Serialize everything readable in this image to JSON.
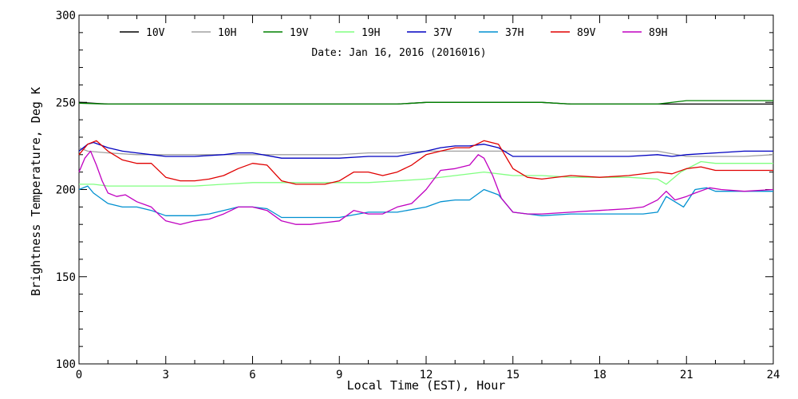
{
  "chart_data": {
    "type": "line",
    "title": "",
    "subtitle": "Date: Jan 16, 2016 (2016016)",
    "xlabel": "Local Time (EST), Hour",
    "ylabel": "Brightness Temperature, Deg K",
    "xlim": [
      0,
      24
    ],
    "ylim": [
      100,
      300
    ],
    "x_ticks": [
      0,
      3,
      6,
      9,
      12,
      15,
      18,
      21,
      24
    ],
    "y_ticks": [
      100,
      150,
      200,
      250,
      300
    ],
    "grid": false,
    "legend_position": "top",
    "series": [
      {
        "name": "10V",
        "color": "#000000",
        "x": [
          0,
          1,
          2,
          3,
          4,
          5,
          6,
          7,
          8,
          9,
          10,
          11,
          12,
          13,
          14,
          15,
          16,
          17,
          18,
          19,
          20,
          21,
          22,
          23,
          24
        ],
        "y": [
          250,
          249,
          249,
          249,
          249,
          249,
          249,
          249,
          249,
          249,
          249,
          249,
          250,
          250,
          250,
          250,
          250,
          249,
          249,
          249,
          249,
          249,
          249,
          249,
          249
        ]
      },
      {
        "name": "10H",
        "color": "#a0a0a0",
        "x": [
          0,
          0.3,
          1,
          2,
          3,
          4,
          5,
          6,
          7,
          8,
          9,
          10,
          11,
          12,
          13,
          14,
          15,
          16,
          17,
          18,
          19,
          20,
          21,
          22,
          23,
          24
        ],
        "y": [
          224,
          222,
          221,
          220,
          220,
          220,
          220,
          220,
          220,
          220,
          220,
          221,
          221,
          222,
          222,
          222,
          222,
          222,
          222,
          222,
          222,
          222,
          219,
          219,
          219,
          220
        ]
      },
      {
        "name": "19V",
        "color": "#008000",
        "x": [
          0,
          1,
          2,
          3,
          4,
          5,
          6,
          7,
          8,
          9,
          10,
          11,
          12,
          13,
          14,
          15,
          16,
          17,
          18,
          19,
          20,
          21,
          22,
          23,
          24
        ],
        "y": [
          249.5,
          249,
          249,
          249,
          249,
          249,
          249,
          249,
          249,
          249,
          249,
          249,
          250,
          250,
          250,
          250,
          250,
          249,
          249,
          249,
          249,
          251,
          251,
          251,
          251
        ]
      },
      {
        "name": "19H",
        "color": "#80ff80",
        "x": [
          0,
          0.5,
          1,
          2,
          3,
          4,
          5,
          6,
          7,
          8,
          9,
          10,
          11,
          12,
          13,
          14,
          15,
          16,
          17,
          18,
          19,
          20,
          20.3,
          20.8,
          21.5,
          22,
          23,
          24
        ],
        "y": [
          203,
          203,
          202,
          202,
          202,
          202,
          203,
          204,
          204,
          204,
          204,
          204,
          205,
          206,
          208,
          210,
          208,
          208,
          207,
          207,
          207,
          206,
          203,
          210,
          216,
          215,
          215,
          215
        ]
      },
      {
        "name": "37V",
        "color": "#0000c0",
        "x": [
          0,
          0.3,
          0.5,
          1,
          1.5,
          2,
          2.5,
          3,
          4,
          5,
          5.5,
          6,
          7,
          8,
          9,
          10,
          11,
          12,
          12.5,
          13,
          13.5,
          14,
          14.5,
          15,
          16,
          17,
          18,
          19,
          20,
          20.5,
          21,
          22,
          23,
          24
        ],
        "y": [
          222,
          226,
          227,
          224,
          222,
          221,
          220,
          219,
          219,
          220,
          221,
          221,
          218,
          218,
          218,
          219,
          219,
          222,
          224,
          225,
          225,
          226,
          224,
          219,
          219,
          219,
          219,
          219,
          220,
          219,
          220,
          221,
          222,
          222
        ]
      },
      {
        "name": "37H",
        "color": "#0090d0",
        "x": [
          0,
          0.3,
          0.5,
          1,
          1.5,
          2,
          2.5,
          3,
          4,
          4.5,
          5,
          5.5,
          6,
          6.5,
          7,
          8,
          9,
          10,
          11,
          12,
          12.5,
          13,
          13.5,
          14,
          14.5,
          15,
          16,
          17,
          18,
          19,
          19.5,
          20,
          20.3,
          20.6,
          20.9,
          21.3,
          21.7,
          22,
          23,
          24
        ],
        "y": [
          200,
          202,
          198,
          192,
          190,
          190,
          188,
          185,
          185,
          186,
          188,
          190,
          190,
          189,
          184,
          184,
          184,
          187,
          187,
          190,
          193,
          194,
          194,
          200,
          197,
          187,
          185,
          186,
          186,
          186,
          186,
          187,
          196,
          193,
          190,
          200,
          201,
          199,
          199,
          199
        ]
      },
      {
        "name": "89V",
        "color": "#e00000",
        "x": [
          0,
          0.3,
          0.6,
          1,
          1.5,
          2,
          2.5,
          3,
          3.5,
          4,
          4.5,
          5,
          5.5,
          6,
          6.5,
          7,
          7.5,
          8,
          8.5,
          9,
          9.5,
          10,
          10.5,
          11,
          11.5,
          12,
          12.5,
          13,
          13.5,
          14,
          14.5,
          15,
          15.5,
          16,
          17,
          18,
          19,
          20,
          20.5,
          21,
          21.5,
          22,
          23,
          24
        ],
        "y": [
          220,
          226,
          228,
          222,
          217,
          215,
          215,
          207,
          205,
          205,
          206,
          208,
          212,
          215,
          214,
          205,
          203,
          203,
          203,
          205,
          210,
          210,
          208,
          210,
          214,
          220,
          222,
          224,
          224,
          228,
          226,
          212,
          207,
          206,
          208,
          207,
          208,
          210,
          209,
          212,
          213,
          211,
          211,
          211
        ]
      },
      {
        "name": "89H",
        "color": "#c000c0",
        "x": [
          0,
          0.2,
          0.4,
          0.6,
          0.8,
          1,
          1.3,
          1.6,
          2,
          2.5,
          2.8,
          3,
          3.5,
          4,
          4.5,
          5,
          5.5,
          6,
          6.5,
          7,
          7.5,
          8,
          8.5,
          9,
          9.5,
          10,
          10.5,
          11,
          11.5,
          12,
          12.5,
          13,
          13.5,
          13.8,
          14,
          14.3,
          14.6,
          15,
          15.5,
          16,
          17,
          18,
          19,
          19.5,
          20,
          20.3,
          20.6,
          21,
          21.3,
          21.8,
          22.2,
          23,
          24
        ],
        "y": [
          210,
          218,
          222,
          214,
          205,
          198,
          196,
          197,
          193,
          190,
          185,
          182,
          180,
          182,
          183,
          186,
          190,
          190,
          188,
          182,
          180,
          180,
          181,
          182,
          188,
          186,
          186,
          190,
          192,
          200,
          211,
          212,
          214,
          220,
          218,
          208,
          195,
          187,
          186,
          186,
          187,
          188,
          189,
          190,
          194,
          199,
          194,
          196,
          198,
          201,
          200,
          199,
          200
        ]
      }
    ]
  }
}
